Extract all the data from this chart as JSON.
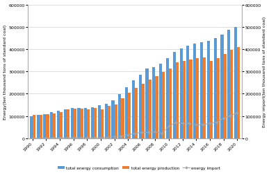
{
  "years": [
    1990,
    1991,
    1992,
    1993,
    1994,
    1995,
    1996,
    1997,
    1998,
    1999,
    2000,
    2001,
    2002,
    2003,
    2004,
    2005,
    2006,
    2007,
    2008,
    2009,
    2010,
    2011,
    2012,
    2013,
    2014,
    2015,
    2016,
    2017,
    2018,
    2019,
    2020
  ],
  "consumption": [
    98703,
    103783,
    109170,
    115993,
    122737,
    131176,
    135192,
    135909,
    136184,
    140569,
    146964,
    155547,
    169577,
    197083,
    230281,
    261369,
    286467,
    311442,
    320611,
    336126,
    360648,
    387043,
    402138,
    416913,
    425806,
    430000,
    435819,
    448529,
    464000,
    487000,
    498000
  ],
  "production": [
    103922,
    104844,
    107256,
    111059,
    118729,
    129034,
    133032,
    132410,
    129834,
    135048,
    128978,
    143875,
    152461,
    179980,
    204836,
    226333,
    244763,
    264637,
    277359,
    295940,
    312127,
    340178,
    347026,
    354047,
    360000,
    362000,
    346000,
    358671,
    376990,
    397000,
    408000
  ],
  "imports": [
    0,
    500,
    1000,
    1200,
    1500,
    1800,
    2000,
    2200,
    2400,
    2600,
    3000,
    4000,
    8000,
    10000,
    15000,
    22532,
    25800,
    26300,
    29300,
    22400,
    54000,
    70000,
    68000,
    67000,
    60000,
    62000,
    67000,
    72000,
    90000,
    101000,
    114000
  ],
  "bar_color_consumption": "#5b9bd5",
  "bar_color_production": "#ed7d31",
  "line_color_import": "#a5a5a5",
  "marker_color_import": "#a5a5a5",
  "ylabel_left": "Energy(ten thousand tons of standard coal)",
  "ylabel_right": "Energy import(ten thousand tons of standard coal)",
  "ylim_left": [
    0,
    600000
  ],
  "ylim_right": [
    0,
    600000
  ],
  "yticks": [
    0,
    100000,
    200000,
    300000,
    400000,
    500000,
    600000
  ],
  "legend_labels": [
    "total energy consumption",
    "total energy production",
    "energy import"
  ],
  "bg_color": "#ffffff",
  "xtick_years": [
    1990,
    1992,
    1994,
    1996,
    1998,
    2000,
    2002,
    2004,
    2006,
    2008,
    2010,
    2012,
    2014,
    2016,
    2018,
    2020
  ]
}
